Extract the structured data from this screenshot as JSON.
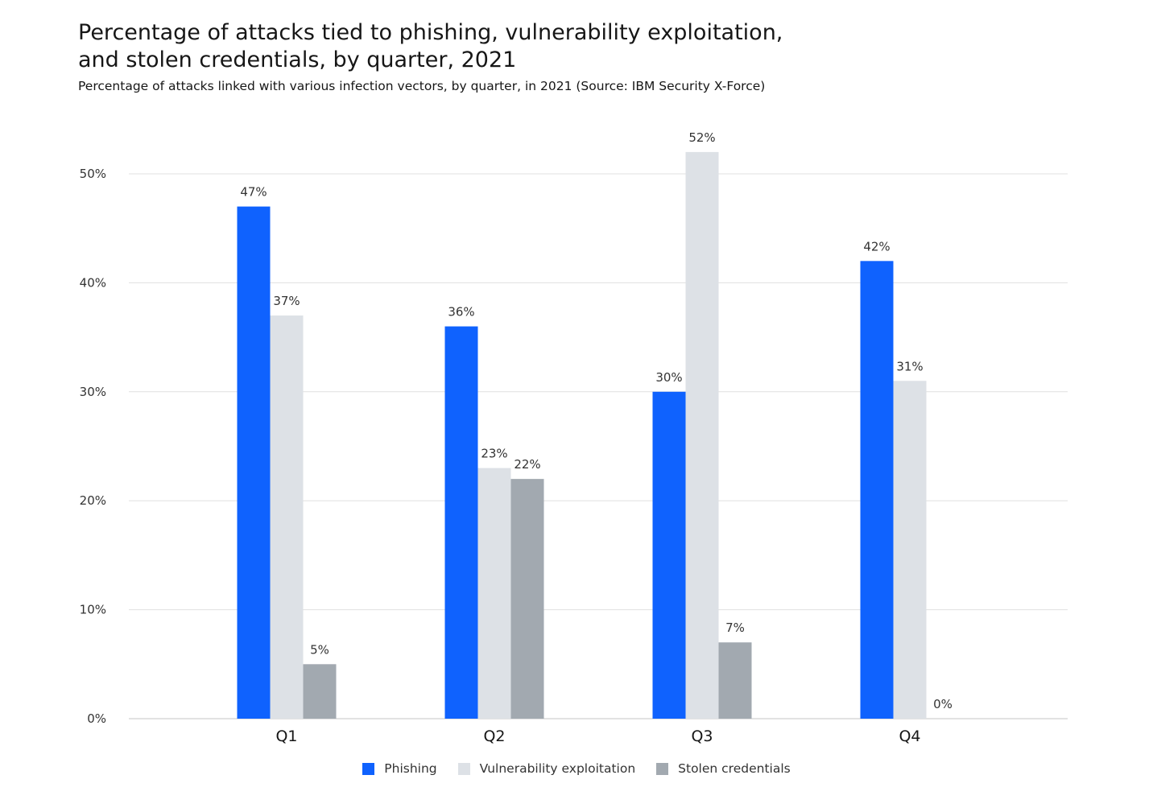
{
  "chart_data": {
    "type": "bar",
    "title": "Percentage of attacks tied to phishing, vulnerability exploitation, and stolen credentials, by quarter, 2021",
    "title_lines": [
      "Percentage of attacks tied to phishing, vulnerability exploitation,",
      "and stolen credentials, by quarter, 2021"
    ],
    "subtitle": "Percentage of attacks linked with various infection vectors, by quarter, in 2021 (Source: IBM Security X-Force)",
    "categories": [
      "Q1",
      "Q2",
      "Q3",
      "Q4"
    ],
    "series": [
      {
        "name": "Phishing",
        "color": "#0f62fe",
        "values": [
          47,
          36,
          30,
          42
        ]
      },
      {
        "name": "Vulnerability exploitation",
        "color": "#dde1e6",
        "values": [
          37,
          23,
          52,
          31
        ]
      },
      {
        "name": "Stolen credentials",
        "color": "#a2a9b0",
        "values": [
          5,
          22,
          7,
          0
        ]
      }
    ],
    "data_labels": [
      [
        "47%",
        "36%",
        "30%",
        "42%"
      ],
      [
        "37%",
        "23%",
        "52%",
        "31%"
      ],
      [
        "5%",
        "22%",
        "7%",
        "0%"
      ]
    ],
    "ylim": [
      0,
      50
    ],
    "yticks": [
      0,
      10,
      20,
      30,
      40,
      50
    ],
    "ytick_labels": [
      "0%",
      "10%",
      "20%",
      "30%",
      "40%",
      "50%"
    ],
    "xlabel": "",
    "ylabel": "",
    "grid": true,
    "legend": "bottom-center"
  }
}
